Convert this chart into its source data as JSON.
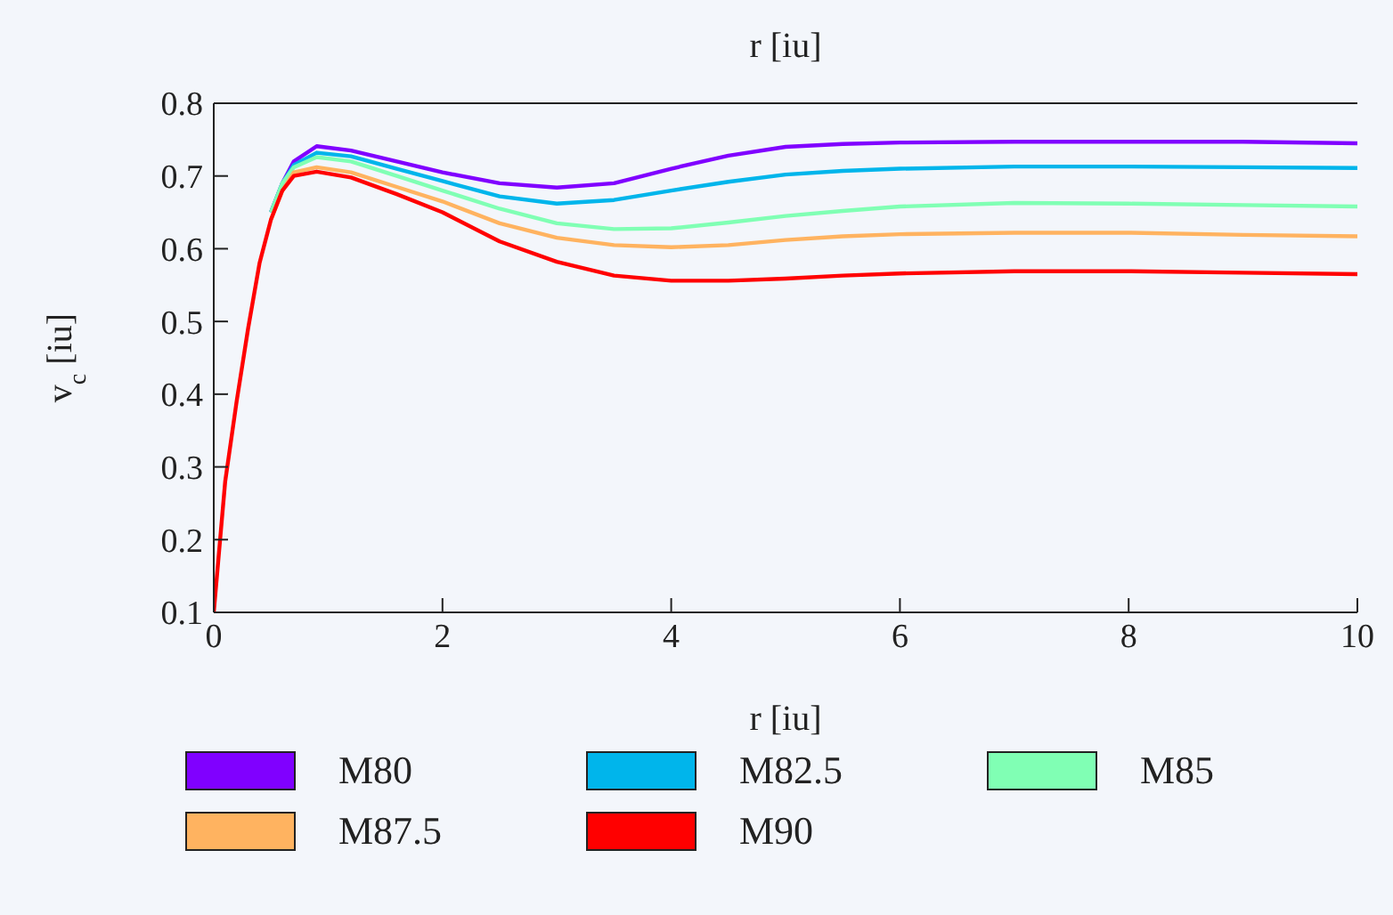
{
  "chart_data": {
    "type": "line",
    "title": "r [iu]",
    "xlabel": "r [iu]",
    "ylabel": "v$_{c}$ [iu]",
    "xlim": [
      0,
      10
    ],
    "xticks": [
      0,
      2,
      4,
      6,
      8,
      10
    ],
    "ylim": [
      0.1,
      0.8
    ],
    "yticks": [
      0.1,
      0.2,
      0.3,
      0.4,
      0.5,
      0.6,
      0.7,
      0.8
    ],
    "legend": "bottom",
    "x": [
      0,
      0.1,
      0.2,
      0.3,
      0.4,
      0.5,
      0.6,
      0.7,
      0.9,
      1.2,
      1.6,
      2,
      2.5,
      3,
      3.5,
      4,
      4.5,
      5,
      5.5,
      6,
      7,
      8,
      9,
      10
    ],
    "series": [
      {
        "name": "M80",
        "color": "#8000ff",
        "values": [
          null,
          null,
          null,
          null,
          null,
          0.65,
          0.69,
          0.72,
          0.741,
          0.735,
          0.72,
          0.705,
          0.69,
          0.684,
          0.69,
          0.71,
          0.728,
          0.74,
          0.744,
          0.746,
          0.747,
          0.747,
          0.747,
          0.745
        ]
      },
      {
        "name": "M82.5",
        "color": "#00b5eb",
        "values": [
          null,
          null,
          null,
          null,
          null,
          0.65,
          0.69,
          0.715,
          0.732,
          0.727,
          0.71,
          0.693,
          0.672,
          0.662,
          0.667,
          0.68,
          0.692,
          0.702,
          0.707,
          0.71,
          0.713,
          0.713,
          0.712,
          0.711
        ]
      },
      {
        "name": "M85",
        "color": "#80ffb4",
        "values": [
          null,
          null,
          null,
          null,
          null,
          0.65,
          0.69,
          0.712,
          0.726,
          0.72,
          0.7,
          0.68,
          0.655,
          0.635,
          0.627,
          0.628,
          0.636,
          0.645,
          0.652,
          0.658,
          0.663,
          0.662,
          0.66,
          0.658
        ]
      },
      {
        "name": "M87.5",
        "color": "#ffb360",
        "values": [
          null,
          null,
          null,
          null,
          null,
          0.64,
          0.68,
          0.705,
          0.712,
          0.705,
          0.685,
          0.665,
          0.635,
          0.615,
          0.605,
          0.602,
          0.605,
          0.612,
          0.617,
          0.62,
          0.622,
          0.622,
          0.619,
          0.617
        ]
      },
      {
        "name": "M90",
        "color": "#ff0000",
        "values": [
          0.1,
          0.28,
          0.39,
          0.49,
          0.58,
          0.64,
          0.68,
          0.7,
          0.706,
          0.698,
          0.675,
          0.65,
          0.61,
          0.582,
          0.563,
          0.556,
          0.556,
          0.559,
          0.563,
          0.566,
          0.569,
          0.569,
          0.567,
          0.565
        ]
      }
    ]
  }
}
